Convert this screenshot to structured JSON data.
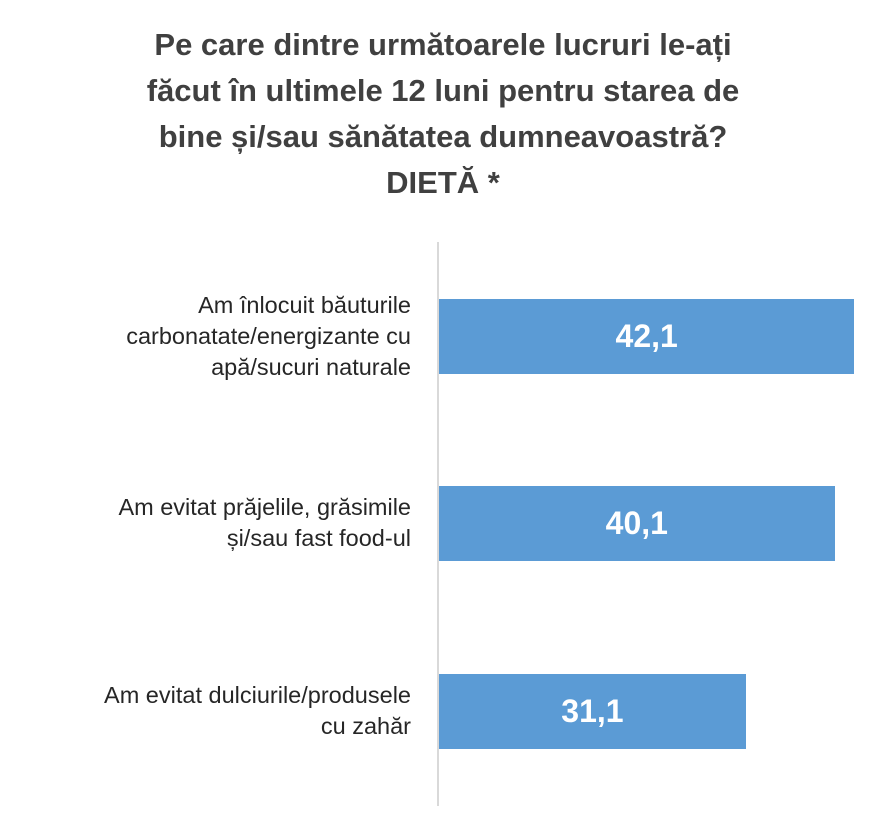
{
  "chart_data": {
    "type": "bar",
    "orientation": "horizontal",
    "title_lines": [
      "Pe care dintre următoarele lucruri le-ați",
      "făcut în ultimele 12 luni pentru starea de",
      "bine și/sau sănătatea dumneavoastră?",
      "DIETĂ *"
    ],
    "categories": [
      [
        "Am înlocuit băuturile",
        "carbonatate/energizante cu",
        "apă/sucuri naturale"
      ],
      [
        "Am evitat prăjelile, grăsimile",
        "și/sau fast food-ul"
      ],
      [
        "Am evitat dulciurile/produsele",
        "cu zahăr"
      ]
    ],
    "values": [
      42.1,
      40.1,
      31.1
    ],
    "value_labels": [
      "42,1",
      "40,1",
      "31,1"
    ],
    "xlim": [
      0,
      45
    ],
    "grid": false,
    "legend": "none",
    "colors": {
      "bar": "#5b9bd5",
      "axis": "#d9d9d9",
      "title": "#404040",
      "label": "#262626",
      "value_text": "#ffffff"
    }
  }
}
